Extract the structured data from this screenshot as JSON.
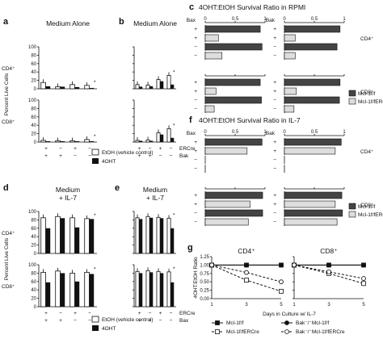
{
  "chart_data": [
    {
      "panel": "a",
      "type": "bar",
      "title": "Medium Alone",
      "ylabel": "Percent Live Cells",
      "rows": [
        "CD4⁺",
        "CD8⁺"
      ],
      "ylim": [
        0,
        100
      ],
      "yticks": [
        0,
        20,
        40,
        60,
        80,
        100
      ],
      "categories": [
        "ERCre +/Bax +",
        "ERCre −/Bax +",
        "ERCre +/Bax −",
        "ERCre −/Bax −"
      ],
      "row_labels": {
        "ERCre": [
          "+",
          "−",
          "+",
          "−"
        ],
        "Bax": [
          "+",
          "+",
          "−",
          "−"
        ]
      },
      "series_colors": [
        "#ffffff",
        "#111111"
      ],
      "data": {
        "CD4": {
          "EtOH": [
            15,
            5,
            10,
            8
          ],
          "4OHT": [
            6,
            5,
            4,
            2
          ]
        },
        "CD8": {
          "EtOH": [
            4,
            3,
            3,
            6
          ],
          "4OHT": [
            2,
            2,
            2,
            2
          ]
        }
      },
      "marks": {
        "CD4": "*",
        "CD8": "*"
      }
    },
    {
      "panel": "b",
      "type": "bar",
      "title": "Medium Alone",
      "rows": [
        "CD4⁺",
        "CD8⁺"
      ],
      "ylim": [
        0,
        100
      ],
      "yticks": [
        0,
        20,
        40,
        60,
        80,
        100
      ],
      "categories": [
        "ERCre +/Bak +",
        "ERCre −/Bak +",
        "ERCre +/Bak −",
        "ERCre −/Bak −"
      ],
      "row_labels": {
        "ERCre": [
          "+",
          "−",
          "+",
          "−"
        ],
        "Bak": [
          "+",
          "+",
          "−",
          "−"
        ]
      },
      "series_colors": [
        "#ffffff",
        "#111111"
      ],
      "data": {
        "CD4": {
          "EtOH": [
            10,
            9,
            22,
            32
          ],
          "4OHT": [
            5,
            6,
            18,
            10
          ]
        },
        "CD8": {
          "EtOH": [
            4,
            5,
            22,
            32
          ],
          "4OHT": [
            3,
            3,
            18,
            10
          ]
        }
      },
      "marks": {
        "CD4": "*",
        "CD8": "*"
      }
    },
    {
      "panel": "c",
      "type": "bar",
      "orientation": "horizontal",
      "title": "4OHT:EtOH Survival Ratio in RPMI",
      "axis_label": "Bax",
      "axis_label_2": "Bak",
      "xlim": [
        0,
        1.0
      ],
      "xticks": [
        0,
        0.5,
        1.0
      ],
      "rows": [
        "CD4⁺",
        "CD8⁺"
      ],
      "row_labels": [
        "+",
        "+",
        "−",
        "−"
      ],
      "fill_labels": [
        "Mcl-1f/f",
        "Mcl-1f/fERCre"
      ],
      "values": {
        "CD4_Bax": [
          0.92,
          0.22,
          0.95,
          0.28
        ],
        "CD4_Bak": [
          0.93,
          0.18,
          0.88,
          0.18
        ],
        "CD8_Bax": [
          0.92,
          0.18,
          0.94,
          0.15
        ],
        "CD8_Bak": [
          0.93,
          0.2,
          0.92,
          0.16
        ]
      },
      "annotations": [
        "ns",
        "ns",
        "†",
        "† ns",
        "†",
        "*",
        "ns",
        "†"
      ]
    },
    {
      "panel": "d",
      "type": "bar",
      "title": "Medium + IL-7",
      "ylabel": "Percent Live Cells",
      "rows": [
        "CD4⁺",
        "CD8⁺"
      ],
      "ylim": [
        0,
        100
      ],
      "yticks": [
        0,
        20,
        40,
        60,
        80,
        100
      ],
      "categories": [
        "ERCre +/Bak +",
        "ERCre −/Bak +",
        "ERCre +/Bak −",
        "ERCre −/Bak −"
      ],
      "row_labels": {
        "ERCre": [
          "+",
          "−",
          "+",
          "−"
        ],
        "Bak": [
          "+",
          "+",
          "−",
          "−"
        ]
      },
      "series_colors": [
        "#ffffff",
        "#111111"
      ],
      "data": {
        "CD4": {
          "EtOH": [
            85,
            88,
            85,
            83
          ],
          "4OHT": [
            60,
            84,
            62,
            82
          ]
        },
        "CD8": {
          "EtOH": [
            82,
            85,
            80,
            82
          ],
          "4OHT": [
            58,
            80,
            60,
            78
          ]
        }
      },
      "marks": {
        "CD4": "*",
        "CD8": "*"
      }
    },
    {
      "panel": "e",
      "type": "bar",
      "title": "Medium + IL-7",
      "rows": [
        "CD4⁺",
        "CD8⁺"
      ],
      "ylim": [
        0,
        100
      ],
      "yticks": [
        0,
        20,
        40,
        60,
        80,
        100
      ],
      "categories": [
        "ERCre +/Bax +",
        "ERCre −/Bax +",
        "ERCre +/Bax −",
        "ERCre −/Bax −"
      ],
      "row_labels": {
        "ERCre": [
          "+",
          "−",
          "+",
          "−"
        ],
        "Bax": [
          "+",
          "+",
          "−",
          "−"
        ]
      },
      "series_colors": [
        "#ffffff",
        "#111111"
      ],
      "data": {
        "CD4": {
          "EtOH": [
            85,
            88,
            86,
            84
          ],
          "4OHT": [
            82,
            85,
            84,
            60
          ]
        },
        "CD8": {
          "EtOH": [
            84,
            86,
            84,
            83
          ],
          "4OHT": [
            80,
            82,
            80,
            58
          ]
        }
      },
      "marks": {
        "CD4": "*",
        "CD8": "*"
      }
    },
    {
      "panel": "f",
      "type": "bar",
      "orientation": "horizontal",
      "title": "4OHT:EtOH Survival Ratio in IL-7",
      "axis_label": "Bax",
      "axis_label_2": "Bak",
      "xlim": [
        0,
        1.0
      ],
      "xticks": [
        0,
        0.5,
        1.0
      ],
      "rows": [
        "CD4⁺",
        "CD8⁺"
      ],
      "row_labels": [
        "+",
        "+",
        "−",
        "−"
      ],
      "fill_labels": [
        "Mcl-1f/f",
        "Mcl-1f/fERCre"
      ],
      "values": {
        "CD4_Bax": [
          0.95,
          0.7,
          0.0,
          0.0
        ],
        "CD4_Bak": [
          0.95,
          0.85,
          0.0,
          0.0
        ],
        "CD8_Bax": [
          0.96,
          0.75,
          0.96,
          0.72
        ],
        "CD8_Bak": [
          0.96,
          0.85,
          0.97,
          0.88
        ]
      },
      "annotations": [
        "*",
        "ns",
        "†",
        "ns",
        "*",
        "ns",
        "†",
        "ns"
      ]
    },
    {
      "panel": "g",
      "type": "line",
      "ylabel": "4OHT:EtOH Ratio",
      "xlabel": "Days in Culture w/ IL-7",
      "x": [
        1,
        3,
        5
      ],
      "xticks": [
        1,
        3,
        5
      ],
      "ylim": [
        0,
        1.25
      ],
      "yticks": [
        0,
        0.25,
        0.5,
        0.75,
        1.0,
        1.25
      ],
      "subplots": [
        {
          "title": "CD4⁺",
          "series": [
            {
              "name": "Mcl-1f/f",
              "values": [
                1.0,
                1.0,
                1.0
              ]
            },
            {
              "name": "Bak⁻/⁻Mcl-1f/f",
              "values": [
                1.0,
                1.0,
                1.0
              ]
            },
            {
              "name": "Mcl-1f/fERCre",
              "values": [
                1.0,
                0.55,
                0.22
              ]
            },
            {
              "name": "Bak⁻/⁻Mcl-1f/fERCre",
              "values": [
                1.0,
                0.78,
                0.5
              ]
            }
          ]
        },
        {
          "title": "CD8⁺",
          "series": [
            {
              "name": "Mcl-1f/f",
              "values": [
                1.0,
                1.0,
                1.0
              ]
            },
            {
              "name": "Bak⁻/⁻Mcl-1f/f",
              "values": [
                1.0,
                1.0,
                1.0
              ]
            },
            {
              "name": "Mcl-1f/fERCre",
              "values": [
                1.0,
                0.75,
                0.45
              ]
            },
            {
              "name": "Bak⁻/⁻Mcl-1f/fERCre",
              "values": [
                1.0,
                0.8,
                0.6
              ]
            }
          ]
        }
      ]
    }
  ],
  "labels": {
    "panel_a": "a",
    "panel_b": "b",
    "panel_c": "c",
    "panel_d": "d",
    "panel_e": "e",
    "panel_f": "f",
    "panel_g": "g",
    "ercre": "ERCre",
    "bax": "Bax",
    "bak": "Bak",
    "legend_etoh": "EtOH (vehicle control)",
    "legend_4oht": "4OHT",
    "cd4": "CD4⁺",
    "cd8": "CD8⁺"
  }
}
